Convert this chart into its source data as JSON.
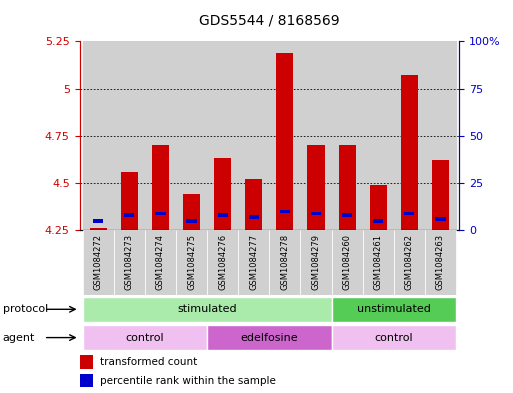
{
  "title": "GDS5544 / 8168569",
  "samples": [
    "GSM1084272",
    "GSM1084273",
    "GSM1084274",
    "GSM1084275",
    "GSM1084276",
    "GSM1084277",
    "GSM1084278",
    "GSM1084279",
    "GSM1084260",
    "GSM1084261",
    "GSM1084262",
    "GSM1084263"
  ],
  "red_values": [
    4.26,
    4.56,
    4.7,
    4.44,
    4.63,
    4.52,
    5.19,
    4.7,
    4.7,
    4.49,
    5.07,
    4.62
  ],
  "blue_values": [
    4.3,
    4.33,
    4.34,
    4.3,
    4.33,
    4.32,
    4.35,
    4.34,
    4.33,
    4.3,
    4.34,
    4.31
  ],
  "ymin": 4.25,
  "ymax": 5.25,
  "yticks": [
    4.25,
    4.5,
    4.75,
    5.0,
    5.25
  ],
  "ytick_labels": [
    "4.25",
    "4.5",
    "4.75",
    "5",
    "5.25"
  ],
  "right_yticks": [
    4.25,
    4.5,
    4.75,
    5.0,
    5.25
  ],
  "right_ytick_labels": [
    "0",
    "25",
    "50",
    "75",
    "100%"
  ],
  "bar_color": "#cc0000",
  "blue_color": "#0000cc",
  "grid_color": "#000000",
  "axis_color_left": "#cc0000",
  "axis_color_right": "#0000cc",
  "protocol_groups": [
    {
      "label": "stimulated",
      "start": 0,
      "end": 7,
      "color": "#aaeaaa"
    },
    {
      "label": "unstimulated",
      "start": 8,
      "end": 11,
      "color": "#55cc55"
    }
  ],
  "agent_groups": [
    {
      "label": "control",
      "start": 0,
      "end": 3,
      "color": "#f0c0f0"
    },
    {
      "label": "edelfosine",
      "start": 4,
      "end": 7,
      "color": "#cc66cc"
    },
    {
      "label": "control",
      "start": 8,
      "end": 11,
      "color": "#f0c0f0"
    }
  ],
  "legend_red": "transformed count",
  "legend_blue": "percentile rank within the sample",
  "bar_width": 0.55
}
